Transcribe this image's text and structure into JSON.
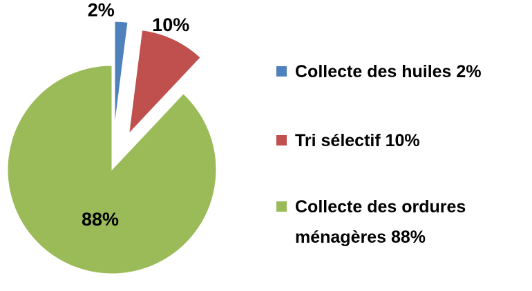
{
  "chart_data": {
    "type": "pie",
    "categories": [
      "Collecte des huiles",
      "Tri sélectif",
      "Collecte des ordures ménagères"
    ],
    "values": [
      2,
      10,
      88
    ],
    "value_labels": [
      "2%",
      "10%",
      "88%"
    ],
    "colors": [
      "#4f81bd",
      "#c0504d",
      "#9bbb59"
    ]
  }
}
